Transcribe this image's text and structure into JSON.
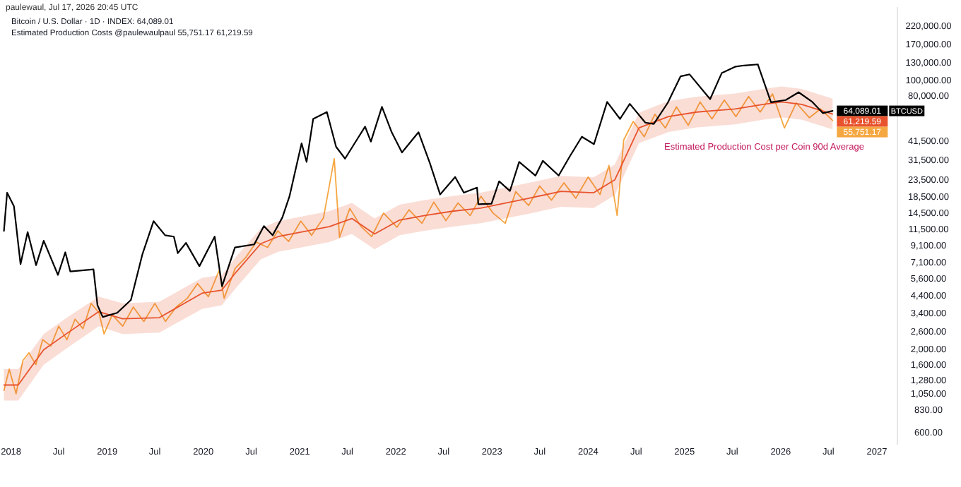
{
  "chart_data": {
    "type": "line",
    "title": "paulewaul, Jul 17, 2026 20:45 UTC",
    "annotations": [
      "Bitcoin / U.S. Dollar · 1D · INDEX: 64,089.01",
      "Estimated Production Costs @paulewaulpaul 55,751.17 61,219.59",
      "Estimated Production Cost per Coin 90d Average"
    ],
    "log": "y",
    "xlim": [
      "2017-11-20",
      "2027-03-20"
    ],
    "ylim": [
      500,
      290000
    ],
    "xticks": [
      {
        "value": "2018-01-01",
        "label": "2018"
      },
      {
        "value": "2018-07-01",
        "label": "Jul"
      },
      {
        "value": "2019-01-01",
        "label": "2019"
      },
      {
        "value": "2019-07-01",
        "label": "Jul"
      },
      {
        "value": "2020-01-01",
        "label": "2020"
      },
      {
        "value": "2020-07-01",
        "label": "Jul"
      },
      {
        "value": "2021-01-01",
        "label": "2021"
      },
      {
        "value": "2021-07-01",
        "label": "Jul"
      },
      {
        "value": "2022-01-01",
        "label": "2022"
      },
      {
        "value": "2022-07-01",
        "label": "Jul"
      },
      {
        "value": "2023-01-01",
        "label": "2023"
      },
      {
        "value": "2023-07-01",
        "label": "Jul"
      },
      {
        "value": "2024-01-01",
        "label": "2024"
      },
      {
        "value": "2024-07-01",
        "label": "Jul"
      },
      {
        "value": "2025-01-01",
        "label": "2025"
      },
      {
        "value": "2025-07-01",
        "label": "Jul"
      },
      {
        "value": "2026-01-01",
        "label": "2026"
      },
      {
        "value": "2026-07-01",
        "label": "Jul"
      },
      {
        "value": "2027-01-01",
        "label": "2027"
      }
    ],
    "yticks": [
      {
        "value": 600,
        "label": "600.00"
      },
      {
        "value": 830,
        "label": "830.00"
      },
      {
        "value": 1050,
        "label": "1,050.00"
      },
      {
        "value": 1280,
        "label": "1,280.00"
      },
      {
        "value": 1600,
        "label": "1,600.00"
      },
      {
        "value": 2000,
        "label": "2,000.00"
      },
      {
        "value": 2600,
        "label": "2,600.00"
      },
      {
        "value": 3400,
        "label": "3,400.00"
      },
      {
        "value": 4400,
        "label": "4,400.00"
      },
      {
        "value": 5600,
        "label": "5,600.00"
      },
      {
        "value": 7100,
        "label": "7,100.00"
      },
      {
        "value": 9100,
        "label": "9,100.00"
      },
      {
        "value": 11500,
        "label": "11,500.00"
      },
      {
        "value": 14500,
        "label": "14,500.00"
      },
      {
        "value": 18500,
        "label": "18,500.00"
      },
      {
        "value": 23500,
        "label": "23,500.00"
      },
      {
        "value": 31500,
        "label": "31,500.00"
      },
      {
        "value": 41500,
        "label": "41,500.00"
      },
      {
        "value": 80000,
        "label": "80,000.00"
      },
      {
        "value": 100000,
        "label": "100,000.00"
      },
      {
        "value": 130000,
        "label": "130,000.00"
      },
      {
        "value": 170000,
        "label": "170,000.00"
      },
      {
        "value": 220000,
        "label": "220,000.00"
      }
    ],
    "series": [
      {
        "color": "#f5a742",
        "x": [
          "2017-12-05",
          "2017-12-25",
          "2018-01-20",
          "2018-02-15",
          "2018-03-10",
          "2018-04-05",
          "2018-05-01",
          "2018-06-01",
          "2018-07-01",
          "2018-08-01",
          "2018-09-01",
          "2018-10-01",
          "2018-11-01",
          "2018-12-01",
          "2018-12-20",
          "2019-01-20",
          "2019-03-01",
          "2019-04-10",
          "2019-05-20",
          "2019-07-01",
          "2019-08-10",
          "2019-09-20",
          "2019-11-01",
          "2019-12-10",
          "2020-01-20",
          "2020-03-01",
          "2020-03-20",
          "2020-05-01",
          "2020-06-10",
          "2020-07-20",
          "2020-09-01",
          "2020-10-10",
          "2020-11-20",
          "2021-01-05",
          "2021-02-15",
          "2021-04-01",
          "2021-05-12",
          "2021-06-01",
          "2021-07-10",
          "2021-08-20",
          "2021-10-01",
          "2021-11-15",
          "2022-01-05",
          "2022-02-20",
          "2022-04-10",
          "2022-05-25",
          "2022-07-10",
          "2022-08-25",
          "2022-10-10",
          "2022-11-20",
          "2023-01-05",
          "2023-02-20",
          "2023-04-01",
          "2023-05-20",
          "2023-07-01",
          "2023-08-15",
          "2023-10-01",
          "2023-11-15",
          "2024-01-01",
          "2024-02-15",
          "2024-03-20",
          "2024-04-20",
          "2024-05-15",
          "2024-06-20",
          "2024-08-01",
          "2024-09-10",
          "2024-10-20",
          "2024-12-01",
          "2025-01-15",
          "2025-03-01",
          "2025-04-15",
          "2025-06-01",
          "2025-07-15",
          "2025-09-01",
          "2025-10-15",
          "2025-12-01",
          "2026-01-15",
          "2026-03-01",
          "2026-04-20",
          "2026-06-01",
          "2026-07-17"
        ],
        "values": [
          1100,
          1500,
          1050,
          1700,
          1900,
          1600,
          2300,
          2100,
          2800,
          2300,
          3100,
          2700,
          3900,
          3400,
          2500,
          3300,
          2800,
          3700,
          3000,
          3900,
          3000,
          3700,
          4200,
          5200,
          4300,
          6300,
          4200,
          6500,
          7600,
          9500,
          8800,
          11200,
          9600,
          12900,
          10500,
          13500,
          32000,
          10200,
          15500,
          12000,
          10300,
          14500,
          11800,
          15200,
          12500,
          17000,
          13000,
          16800,
          14000,
          18500,
          14500,
          12500,
          19800,
          16200,
          21500,
          17500,
          22500,
          18000,
          24500,
          19000,
          29000,
          14000,
          42000,
          55000,
          44000,
          61000,
          50000,
          68000,
          52000,
          73000,
          57000,
          75000,
          59000,
          79000,
          63000,
          82000,
          50000,
          72000,
          58000,
          66000,
          55751.17
        ],
        "value_labels": [
          null,
          null,
          null,
          null,
          null,
          null,
          null,
          null,
          null,
          null,
          null,
          null,
          null,
          null,
          null,
          null,
          null,
          null,
          null,
          null,
          null,
          null,
          null,
          null,
          null,
          null,
          null,
          null,
          null,
          null,
          null,
          null,
          null,
          null,
          null,
          null,
          null,
          null,
          null,
          null,
          null,
          null,
          null,
          null,
          null,
          null,
          null,
          null,
          null,
          null,
          null,
          null,
          null,
          null,
          null,
          null,
          null,
          null,
          null,
          null,
          null,
          null,
          null,
          null,
          null,
          null,
          null,
          null,
          null,
          null,
          null,
          null,
          null,
          null,
          null,
          null,
          null,
          null,
          null,
          null,
          "55,751.17"
        ]
      },
      {
        "color": "#e8532d",
        "x": [
          "2017-12-05",
          "2018-01-28",
          "2018-05-05",
          "2018-08-04",
          "2018-11-30",
          "2019-02-28",
          "2019-07-18",
          "2019-12-27",
          "2020-03-11",
          "2020-05-05",
          "2020-08-06",
          "2020-10-11",
          "2021-04-23",
          "2021-07-18",
          "2021-10-12",
          "2022-01-15",
          "2022-04-20",
          "2022-08-04",
          "2022-11-19",
          "2023-05-15",
          "2023-09-20",
          "2024-01-22",
          "2024-04-11",
          "2024-07-12",
          "2024-11-01",
          "2025-02-17",
          "2025-07-12",
          "2025-10-27",
          "2026-01-05",
          "2026-03-21",
          "2026-07-17"
        ],
        "values": [
          1190,
          1190,
          1990,
          2540,
          3460,
          3120,
          3170,
          4520,
          4730,
          6160,
          9290,
          10300,
          11900,
          13400,
          10700,
          13100,
          14000,
          14900,
          15600,
          17900,
          19900,
          19500,
          23500,
          50100,
          59000,
          63000,
          65900,
          70500,
          73000,
          70500,
          61219.59
        ],
        "lower": [
          950,
          950,
          1600,
          2050,
          2800,
          2500,
          2550,
          3600,
          3800,
          4900,
          7400,
          8250,
          9500,
          10700,
          8550,
          10500,
          11200,
          11900,
          12500,
          14300,
          15900,
          15600,
          18800,
          40100,
          47200,
          50400,
          52700,
          56400,
          58400,
          56400,
          49000
        ],
        "upper": [
          1500,
          1500,
          2500,
          3200,
          4300,
          3900,
          4000,
          5650,
          5900,
          7700,
          11600,
          12900,
          14900,
          16800,
          13400,
          16400,
          17500,
          18600,
          19500,
          22400,
          24900,
          24400,
          29400,
          62600,
          73800,
          78800,
          82400,
          88100,
          91300,
          88100,
          76500
        ],
        "value_labels": [
          null,
          null,
          null,
          null,
          null,
          null,
          null,
          null,
          null,
          null,
          null,
          null,
          null,
          null,
          null,
          null,
          null,
          null,
          null,
          null,
          null,
          null,
          null,
          null,
          null,
          null,
          null,
          null,
          null,
          null,
          "61,219.59"
        ]
      },
      {
        "name": "BTCUSD",
        "color": "#000000",
        "x": [
          "2017-12-05",
          "2017-12-17",
          "2018-01-12",
          "2018-02-06",
          "2018-03-05",
          "2018-04-06",
          "2018-05-05",
          "2018-06-28",
          "2018-07-26",
          "2018-08-14",
          "2018-11-10",
          "2018-11-25",
          "2018-12-15",
          "2019-02-08",
          "2019-04-01",
          "2019-05-15",
          "2019-06-26",
          "2019-08-09",
          "2019-09-11",
          "2019-09-26",
          "2019-10-27",
          "2019-12-17",
          "2020-02-13",
          "2020-03-12",
          "2020-04-30",
          "2020-07-12",
          "2020-08-18",
          "2020-09-20",
          "2020-10-27",
          "2020-11-23",
          "2021-01-08",
          "2021-01-27",
          "2021-02-21",
          "2021-04-14",
          "2021-05-19",
          "2021-06-22",
          "2021-09-06",
          "2021-09-28",
          "2021-11-09",
          "2021-12-16",
          "2022-01-24",
          "2022-03-28",
          "2022-05-10",
          "2022-06-18",
          "2022-08-14",
          "2022-09-16",
          "2022-11-05",
          "2022-11-10",
          "2022-12-30",
          "2023-01-28",
          "2023-03-10",
          "2023-04-14",
          "2023-06-15",
          "2023-07-13",
          "2023-09-11",
          "2023-10-23",
          "2023-12-08",
          "2024-01-23",
          "2024-03-13",
          "2024-05-01",
          "2024-06-07",
          "2024-08-05",
          "2024-09-06",
          "2024-10-29",
          "2024-12-17",
          "2025-01-20",
          "2025-04-08",
          "2025-05-22",
          "2025-07-14",
          "2025-08-14",
          "2025-10-06",
          "2025-11-25",
          "2026-01-20",
          "2026-03-10",
          "2026-05-01",
          "2026-06-10",
          "2026-07-17"
        ],
        "values": [
          11200,
          19500,
          16000,
          6900,
          11000,
          6800,
          9700,
          5900,
          8200,
          6200,
          6400,
          3800,
          3200,
          3400,
          4100,
          8000,
          12900,
          10500,
          10300,
          8100,
          9400,
          6700,
          10300,
          5000,
          8800,
          9200,
          12000,
          10500,
          13600,
          18500,
          40000,
          30500,
          57000,
          63000,
          38000,
          32000,
          51000,
          41000,
          68000,
          47000,
          35000,
          47000,
          30000,
          19000,
          24500,
          19500,
          21000,
          16500,
          16600,
          23000,
          20000,
          30500,
          25000,
          31000,
          25000,
          33000,
          44000,
          39500,
          73000,
          57000,
          71000,
          54000,
          53000,
          72000,
          106000,
          109000,
          76000,
          111000,
          122000,
          124000,
          126000,
          72600,
          75000,
          84000,
          73000,
          62000,
          64089.01
        ],
        "value_labels": [
          null,
          null,
          null,
          null,
          null,
          null,
          null,
          null,
          null,
          null,
          null,
          null,
          null,
          null,
          null,
          null,
          null,
          null,
          null,
          null,
          null,
          null,
          null,
          null,
          null,
          null,
          null,
          null,
          null,
          null,
          null,
          null,
          null,
          null,
          null,
          null,
          null,
          null,
          null,
          null,
          null,
          null,
          null,
          null,
          null,
          null,
          null,
          null,
          null,
          null,
          null,
          null,
          null,
          null,
          null,
          null,
          null,
          null,
          null,
          null,
          null,
          null,
          null,
          null,
          null,
          null,
          null,
          null,
          null,
          null,
          null,
          null,
          null,
          null,
          null,
          null,
          "64,089.01"
        ]
      }
    ]
  }
}
